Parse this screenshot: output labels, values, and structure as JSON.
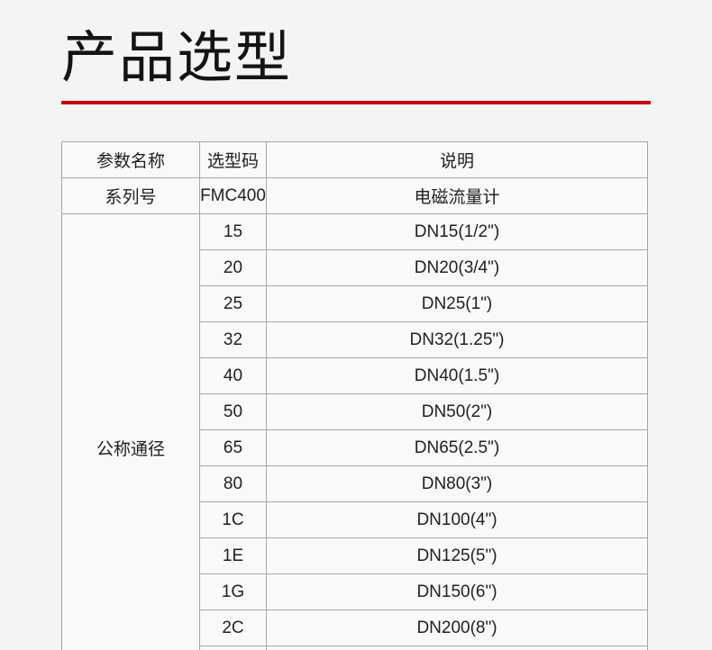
{
  "page": {
    "title": "产品选型",
    "background_color": "#f4f4f4",
    "accent_color": "#c20d0d"
  },
  "table": {
    "headers": {
      "parameter": "参数名称",
      "code": "选型码",
      "description": "说明"
    },
    "series_row": {
      "parameter": "系列号",
      "code": "FMC400",
      "description": "电磁流量计"
    },
    "diameter_group": {
      "parameter": "公称通径",
      "rows": [
        {
          "code": "15",
          "description": "DN15(1/2\")"
        },
        {
          "code": "20",
          "description": "DN20(3/4\")"
        },
        {
          "code": "25",
          "description": "DN25(1\")"
        },
        {
          "code": "32",
          "description": "DN32(1.25\")"
        },
        {
          "code": "40",
          "description": "DN40(1.5\")"
        },
        {
          "code": "50",
          "description": "DN50(2\")"
        },
        {
          "code": "65",
          "description": "DN65(2.5\")"
        },
        {
          "code": "80",
          "description": "DN80(3\")"
        },
        {
          "code": "1C",
          "description": "DN100(4\")"
        },
        {
          "code": "1E",
          "description": "DN125(5\")"
        },
        {
          "code": "1G",
          "description": "DN150(6\")"
        },
        {
          "code": "2C",
          "description": "DN200(8\")"
        },
        {
          "code": "",
          "description": ""
        }
      ]
    }
  }
}
